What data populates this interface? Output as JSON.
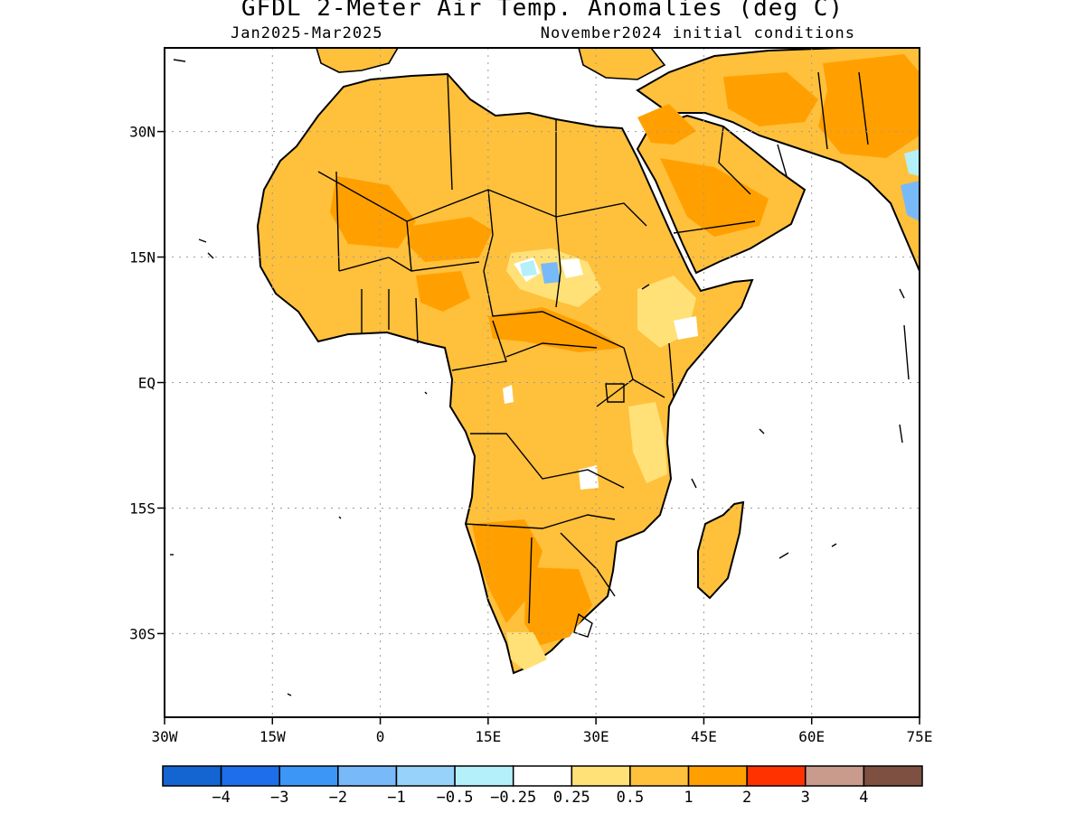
{
  "title": "GFDL 2-Meter Air Temp. Anomalies (deg C)",
  "subtitle_left": "Jan2025-Mar2025",
  "subtitle_right": "November2024 initial conditions",
  "map": {
    "lon_range": [
      -30,
      75
    ],
    "lat_range": [
      -40,
      40
    ],
    "lon_ticks": [
      {
        "value": -30,
        "label": "30W"
      },
      {
        "value": -15,
        "label": "15W"
      },
      {
        "value": 0,
        "label": "0"
      },
      {
        "value": 15,
        "label": "15E"
      },
      {
        "value": 30,
        "label": "30E"
      },
      {
        "value": 45,
        "label": "45E"
      },
      {
        "value": 60,
        "label": "60E"
      },
      {
        "value": 75,
        "label": "75E"
      }
    ],
    "lat_ticks": [
      {
        "value": 30,
        "label": "30N"
      },
      {
        "value": 15,
        "label": "15N"
      },
      {
        "value": 0,
        "label": "EQ"
      },
      {
        "value": -15,
        "label": "15S"
      },
      {
        "value": -30,
        "label": "30S"
      }
    ],
    "grid": true,
    "colors": {
      "ocean": "#ffffff",
      "coast": "#000000",
      "grid": "#9a9a9a"
    }
  },
  "colorbar": {
    "colors": [
      "#1464d2",
      "#1e6eeb",
      "#3c96f5",
      "#78b9fa",
      "#96d2fa",
      "#b4f0fa",
      "#ffffff",
      "#ffe178",
      "#ffc03c",
      "#ffa000",
      "#ff3200",
      "#c89b8c",
      "#7d5041"
    ],
    "labels": [
      "-4",
      "-3",
      "-2",
      "-1",
      "-0.5",
      "-0.25",
      "0.25",
      "0.5",
      "1",
      "2",
      "3",
      "4"
    ]
  }
}
